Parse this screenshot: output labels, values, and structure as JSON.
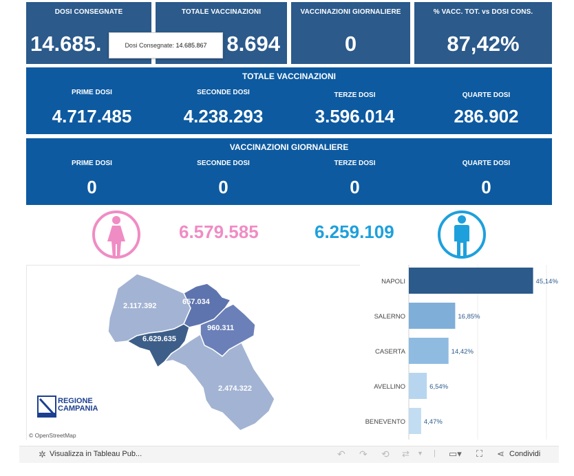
{
  "kpis": [
    {
      "label": "DOSI  CONSEGNATE",
      "value": "14.685."
    },
    {
      "label": "TOTALE VACCINAZIONI",
      "value": "8.694"
    },
    {
      "label": "VACCINAZIONI GIORNALIERE",
      "value": "0"
    },
    {
      "label": "% VACC. TOT. vs DOSI CONS.",
      "value": "87,42%"
    }
  ],
  "tooltip": {
    "label": "Dosi Consegnate:",
    "value": "14.685.867"
  },
  "totale_vaccinazioni": {
    "title": "TOTALE VACCINAZIONI",
    "cols": [
      {
        "label": "PRIME DOSI",
        "value": "4.717.485"
      },
      {
        "label": "SECONDE DOSI",
        "value": "4.238.293"
      },
      {
        "label": "TERZE DOSI",
        "value": "3.596.014"
      },
      {
        "label": "QUARTE DOSI",
        "value": "286.902"
      }
    ]
  },
  "vaccinazioni_giornaliere": {
    "title": "VACCINAZIONI GIORNALIERE",
    "cols": [
      {
        "label": "PRIME DOSI",
        "value": "0"
      },
      {
        "label": "SECONDE DOSI",
        "value": "0"
      },
      {
        "label": "TERZE DOSI",
        "value": "0"
      },
      {
        "label": "QUARTE DOSI",
        "value": "0"
      }
    ]
  },
  "gender": {
    "female": "6.579.585",
    "male": "6.259.109",
    "female_color": "#f08cc4",
    "male_color": "#1ea0dc"
  },
  "map": {
    "labels": {
      "caserta": "2.117.392",
      "benevento": "657.034",
      "avellino": "960.311",
      "napoli": "6.629.635",
      "salerno": "2.474.322"
    },
    "logo_line1": "REGIONE",
    "logo_line2": "CAMPANIA",
    "credit": "© OpenStreetMap"
  },
  "chart_data": {
    "type": "bar",
    "categories": [
      "NAPOLI",
      "SALERNO",
      "CASERTA",
      "AVELLINO",
      "BENEVENTO"
    ],
    "values": [
      45.14,
      16.85,
      14.42,
      6.54,
      4.47
    ],
    "value_labels": [
      "45,14%",
      "16,85%",
      "14,42%",
      "6,54%",
      "4,47%"
    ],
    "colors": [
      "#2b5a8b",
      "#7fafd8",
      "#8fbbe0",
      "#b7d5ee",
      "#c2dcf1"
    ],
    "xlim": [
      0,
      50
    ]
  },
  "toolbar": {
    "view_label": "Visualizza in Tableau Pub...",
    "share_label": "Condividi"
  }
}
